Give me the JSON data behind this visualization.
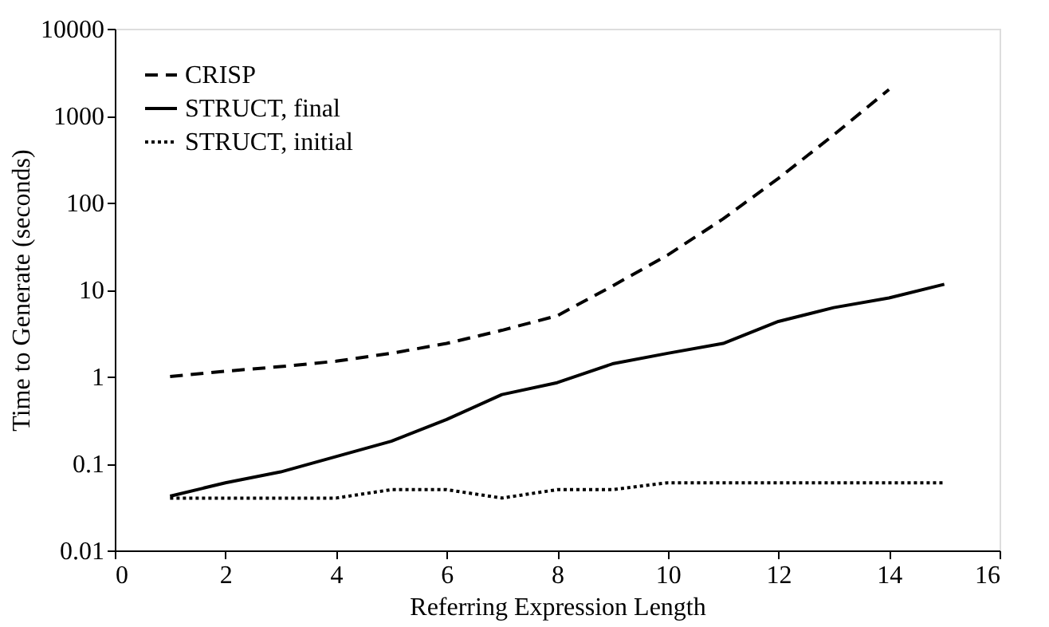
{
  "chart_data": {
    "type": "line",
    "xlabel": "Referring Expression Length",
    "ylabel": "Time to Generate (seconds)",
    "x": [
      1,
      2,
      3,
      4,
      5,
      6,
      7,
      8,
      9,
      10,
      11,
      12,
      13,
      14,
      15
    ],
    "series": [
      {
        "name": "CRISP",
        "color": "#000000",
        "line_style": "dashed",
        "x": [
          1,
          2,
          3,
          4,
          5,
          6,
          7,
          8,
          9,
          10,
          11,
          12,
          13,
          14
        ],
        "values": [
          1.0,
          1.15,
          1.3,
          1.5,
          1.85,
          2.4,
          3.4,
          5,
          11,
          25,
          65,
          190,
          600,
          2000
        ]
      },
      {
        "name": "STRUCT, final",
        "color": "#000000",
        "line_style": "solid",
        "values": [
          0.042,
          0.06,
          0.08,
          0.12,
          0.18,
          0.32,
          0.62,
          0.85,
          1.4,
          1.85,
          2.4,
          4.3,
          6.2,
          8,
          11.5
        ]
      },
      {
        "name": "STRUCT, initial",
        "color": "#000000",
        "line_style": "dotted",
        "values": [
          0.04,
          0.04,
          0.04,
          0.04,
          0.05,
          0.05,
          0.04,
          0.05,
          0.05,
          0.06,
          0.06,
          0.06,
          0.06,
          0.06,
          0.06
        ]
      }
    ],
    "xlim": [
      0,
      16
    ],
    "xticks": [
      0,
      2,
      4,
      6,
      8,
      10,
      12,
      14,
      16
    ],
    "ylim": [
      0.01,
      10000
    ],
    "yticks": [
      0.01,
      0.1,
      1,
      10,
      100,
      1000,
      10000
    ],
    "log": "y",
    "grid": false,
    "legend": "top left",
    "marker": "none"
  }
}
